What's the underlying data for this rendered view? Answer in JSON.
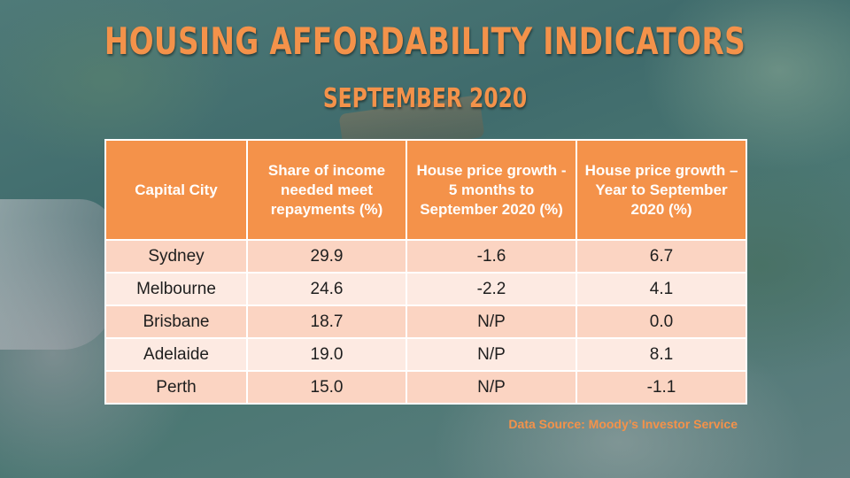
{
  "title": "HOUSING AFFORDABILITY INDICATORS",
  "subtitle": "SEPTEMBER 2020",
  "table": {
    "headers": [
      "Capital City",
      "Share of income needed meet repayments (%)",
      "House price growth - 5 months to September 2020 (%)",
      "House price growth – Year to September 2020 (%)"
    ],
    "rows": [
      [
        "Sydney",
        "29.9",
        "-1.6",
        "6.7"
      ],
      [
        "Melbourne",
        "24.6",
        "-2.2",
        "4.1"
      ],
      [
        "Brisbane",
        "18.7",
        "N/P",
        "0.0"
      ],
      [
        "Adelaide",
        "19.0",
        "N/P",
        "8.1"
      ],
      [
        "Perth",
        "15.0",
        "N/P",
        "-1.1"
      ]
    ]
  },
  "source": "Data Source: Moody’s Investor Service",
  "colors": {
    "accent": "#f4924a",
    "row_odd": "#fbd4c2",
    "row_even": "#fdeae2"
  }
}
